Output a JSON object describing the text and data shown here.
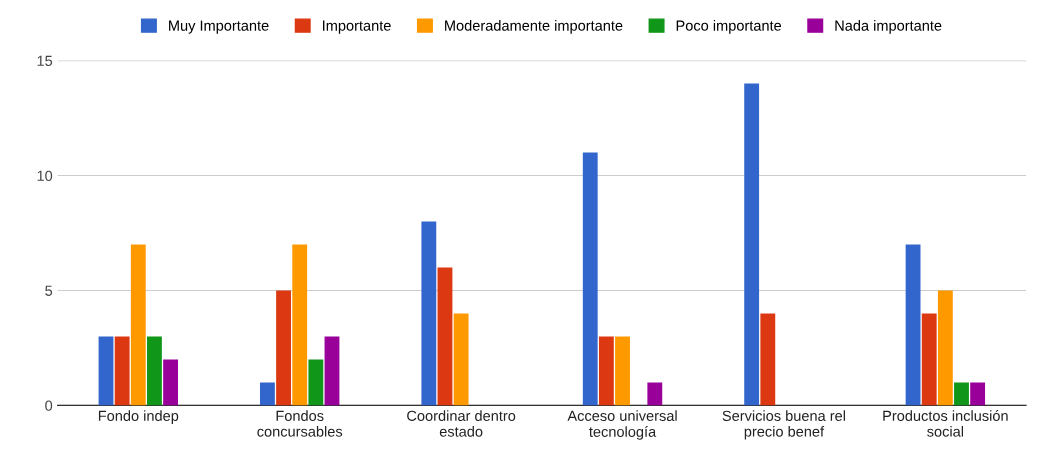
{
  "chart_data": {
    "type": "bar",
    "categories": [
      "Fondo indep",
      "Fondos\nconcursables",
      "Coordinar dentro\nestado",
      "Acceso universal\ntecnología",
      "Servicios buena rel\nprecio benef",
      "Productos inclusión\nsocial"
    ],
    "series": [
      {
        "name": "Muy Importante",
        "color": "#3366cc",
        "values": [
          3,
          1,
          8,
          11,
          14,
          7
        ]
      },
      {
        "name": "Importante",
        "color": "#dc3912",
        "values": [
          3,
          5,
          6,
          3,
          4,
          4
        ]
      },
      {
        "name": "Moderadamente importante",
        "color": "#ff9900",
        "values": [
          7,
          7,
          4,
          3,
          0,
          5
        ]
      },
      {
        "name": "Poco importante",
        "color": "#109618",
        "values": [
          3,
          2,
          0,
          0,
          0,
          1
        ]
      },
      {
        "name": "Nada importante",
        "color": "#990099",
        "values": [
          2,
          3,
          0,
          1,
          0,
          1
        ]
      }
    ],
    "ylim": [
      0,
      15
    ],
    "yticks": [
      0,
      5,
      10,
      15
    ],
    "grid": "y",
    "legend": "top"
  }
}
